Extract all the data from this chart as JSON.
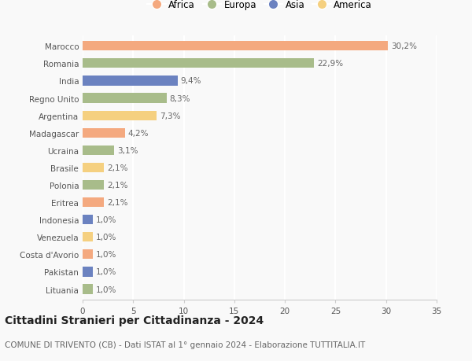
{
  "countries": [
    "Marocco",
    "Romania",
    "India",
    "Regno Unito",
    "Argentina",
    "Madagascar",
    "Ucraina",
    "Brasile",
    "Polonia",
    "Eritrea",
    "Indonesia",
    "Venezuela",
    "Costa d'Avorio",
    "Pakistan",
    "Lituania"
  ],
  "values": [
    30.2,
    22.9,
    9.4,
    8.3,
    7.3,
    4.2,
    3.1,
    2.1,
    2.1,
    2.1,
    1.0,
    1.0,
    1.0,
    1.0,
    1.0
  ],
  "labels": [
    "30,2%",
    "22,9%",
    "9,4%",
    "8,3%",
    "7,3%",
    "4,2%",
    "3,1%",
    "2,1%",
    "2,1%",
    "2,1%",
    "1,0%",
    "1,0%",
    "1,0%",
    "1,0%",
    "1,0%"
  ],
  "continents": [
    "Africa",
    "Europa",
    "Asia",
    "Europa",
    "America",
    "Africa",
    "Europa",
    "America",
    "Europa",
    "Africa",
    "Asia",
    "America",
    "Africa",
    "Asia",
    "Europa"
  ],
  "continent_colors": {
    "Africa": "#F4A97F",
    "Europa": "#A8BC8A",
    "Asia": "#6B82C0",
    "America": "#F5D080"
  },
  "legend_order": [
    "Africa",
    "Europa",
    "Asia",
    "America"
  ],
  "title": "Cittadini Stranieri per Cittadinanza - 2024",
  "subtitle": "COMUNE DI TRIVENTO (CB) - Dati ISTAT al 1° gennaio 2024 - Elaborazione TUTTITALIA.IT",
  "xlim": [
    0,
    35
  ],
  "xticks": [
    0,
    5,
    10,
    15,
    20,
    25,
    30,
    35
  ],
  "background_color": "#f9f9f9",
  "grid_color": "#ffffff",
  "bar_height": 0.55,
  "title_fontsize": 10,
  "subtitle_fontsize": 7.5,
  "label_fontsize": 7.5,
  "tick_fontsize": 7.5,
  "legend_fontsize": 8.5
}
